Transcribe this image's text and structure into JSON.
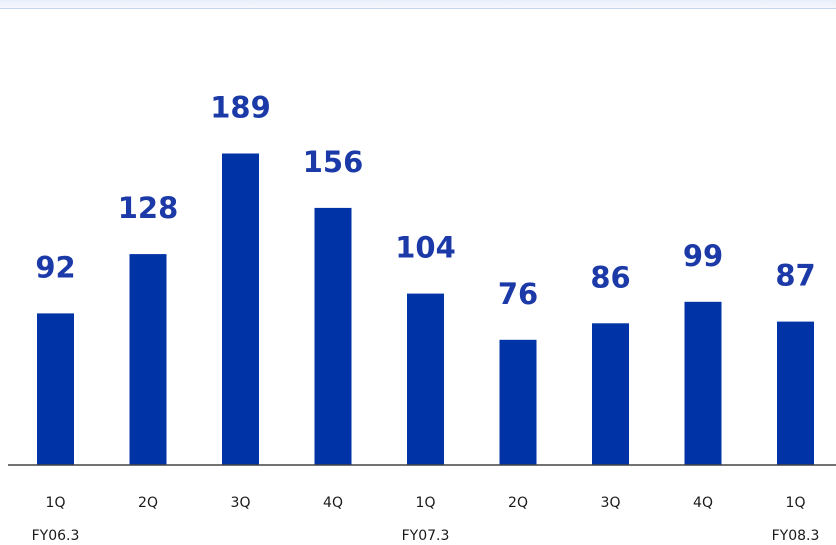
{
  "chart_data": {
    "type": "bar",
    "categories": [
      "1Q",
      "2Q",
      "3Q",
      "4Q",
      "1Q",
      "2Q",
      "3Q",
      "4Q",
      "1Q"
    ],
    "values": [
      92,
      128,
      189,
      156,
      104,
      76,
      86,
      99,
      87
    ],
    "data_labels": [
      "92",
      "128",
      "189",
      "156",
      "104",
      "76",
      "86",
      "99",
      "87"
    ],
    "group_labels": [
      {
        "label": "FY06.3",
        "category_index": 0
      },
      {
        "label": "FY07.3",
        "category_index": 4
      },
      {
        "label": "FY08.3",
        "category_index": 8
      }
    ],
    "title": "",
    "xlabel": "",
    "ylabel": "",
    "ylim": [
      0,
      220
    ],
    "grid": false,
    "legend": "none",
    "bar_color": "#0033a6",
    "label_color": "#1b3aa8"
  }
}
